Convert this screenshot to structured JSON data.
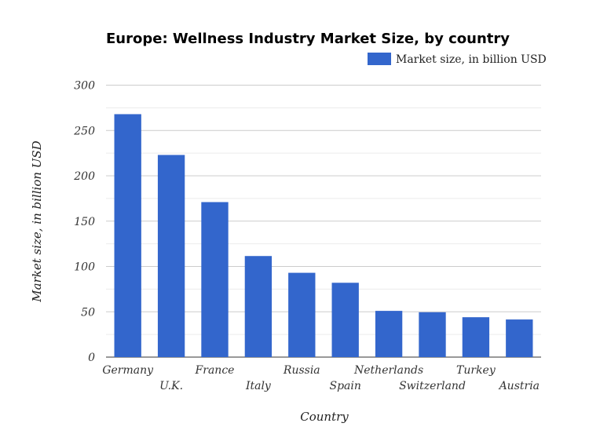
{
  "chart_data": {
    "type": "bar",
    "title": "Europe: Wellness Industry Market Size, by country",
    "xlabel": "Country",
    "ylabel": "Market size, in billion USD",
    "categories": [
      "Germany",
      "U.K.",
      "France",
      "Italy",
      "Russia",
      "Spain",
      "Netherlands",
      "Switzerland",
      "Turkey",
      "Austria"
    ],
    "series": [
      {
        "name": "Market size, in billion USD",
        "values": [
          268,
          223,
          171,
          111.5,
          93,
          82,
          51,
          49.5,
          44,
          41.5
        ],
        "color": "#3366cc"
      }
    ],
    "ylim": [
      0,
      300
    ],
    "yticks": [
      0,
      50,
      100,
      150,
      200,
      250,
      300
    ],
    "grid": true,
    "legend": "top-right"
  }
}
